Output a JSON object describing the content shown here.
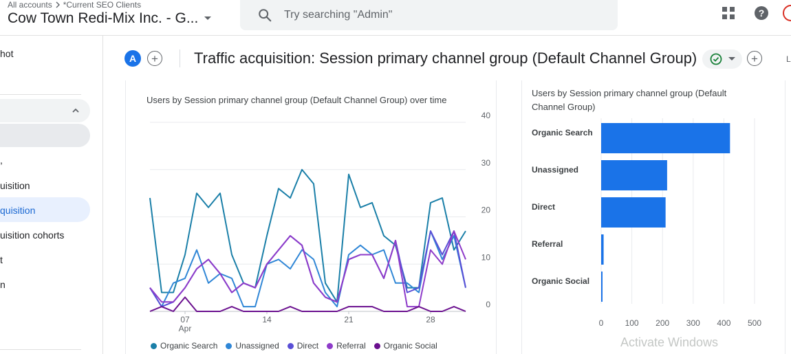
{
  "header": {
    "breadcrumb_root": "All accounts",
    "breadcrumb_current": "*Current SEO Clients",
    "account_title": "Cow Town Redi-Mix Inc. - G...",
    "search_placeholder": "Try searching \"Admin\""
  },
  "sidebar": {
    "items": [
      {
        "label": "hot"
      },
      {
        "label": "uisition"
      },
      {
        "label": "quisition"
      },
      {
        "label": "uisition cohorts"
      },
      {
        "label": "t"
      },
      {
        "label": "n"
      }
    ]
  },
  "report": {
    "comparison_chip": "A",
    "title": "Traffic acquisition: Session primary channel group (Default Channel Group)",
    "edge_label": "L"
  },
  "line_card": {
    "title": "Users by Session primary channel group (Default Channel Group) over time"
  },
  "bar_card": {
    "title_line1": "Users by Session primary channel group (Default",
    "title_line2": "Channel Group)"
  },
  "watermark": "Activate Windows",
  "colors": {
    "accent": "#1a73e8",
    "organic_search": "#1a7fa8",
    "unassigned": "#2f86d6",
    "direct": "#5a4fd6",
    "referral": "#8e3bc9",
    "organic_social": "#6a0f8e"
  },
  "chart_data": [
    {
      "type": "line",
      "title": "Users by Session primary channel group (Default Channel Group) over time",
      "x_tick_labels": [
        {
          "day": "07",
          "month": "Apr",
          "index": 3
        },
        {
          "day": "14",
          "month": "",
          "index": 10
        },
        {
          "day": "21",
          "month": "",
          "index": 17
        },
        {
          "day": "28",
          "month": "",
          "index": 24
        }
      ],
      "y_ticks": [
        0,
        10,
        20,
        30,
        40
      ],
      "ylim": [
        0,
        40
      ],
      "grid": true,
      "legend_position": "bottom",
      "series": [
        {
          "name": "Organic Search",
          "color": "#1a7fa8",
          "values": [
            24,
            4,
            4,
            12,
            25,
            22,
            25,
            12,
            6,
            5,
            16,
            26,
            24,
            30,
            27,
            6,
            2,
            29,
            22,
            23,
            16,
            14,
            5,
            5,
            23,
            24,
            13,
            17
          ]
        },
        {
          "name": "Unassigned",
          "color": "#2f86d6",
          "values": [
            5,
            1,
            6,
            7,
            13,
            6,
            8,
            7,
            1,
            1,
            10,
            11,
            9,
            13,
            11,
            4,
            1,
            12,
            14,
            12,
            13,
            6,
            6,
            4,
            17,
            11,
            16,
            5
          ]
        },
        {
          "name": "Direct",
          "color": "#5a4fd6",
          "values": [
            5,
            1,
            2,
            5,
            9,
            11,
            8,
            4,
            6,
            5,
            10,
            13,
            16,
            14,
            6,
            3,
            2,
            11,
            12,
            12,
            7,
            15,
            4,
            5,
            17,
            12,
            17,
            5
          ]
        },
        {
          "name": "Referral",
          "color": "#8e3bc9",
          "values": [
            5,
            2,
            2,
            5,
            9,
            11,
            8,
            4,
            6,
            5,
            10,
            13,
            16,
            14,
            6,
            3,
            2,
            11,
            12,
            12,
            7,
            15,
            1,
            1,
            13,
            10,
            17,
            11
          ]
        },
        {
          "name": "Organic Social",
          "color": "#6a0f8e",
          "values": [
            0,
            1,
            0,
            3,
            0,
            0,
            0,
            1,
            0,
            0,
            0,
            0,
            1,
            0,
            0,
            0,
            0,
            1,
            1,
            1,
            0,
            0,
            0,
            1,
            0,
            0,
            1,
            0
          ]
        }
      ]
    },
    {
      "type": "bar",
      "orientation": "horizontal",
      "title": "Users by Session primary channel group (Default Channel Group)",
      "categories": [
        "Organic Search",
        "Unassigned",
        "Direct",
        "Referral",
        "Organic Social"
      ],
      "values": [
        420,
        215,
        210,
        8,
        3
      ],
      "xlim": [
        0,
        500
      ],
      "x_ticks": [
        0,
        100,
        200,
        300,
        400,
        500
      ],
      "grid": true,
      "color": "#1a73e8"
    }
  ]
}
